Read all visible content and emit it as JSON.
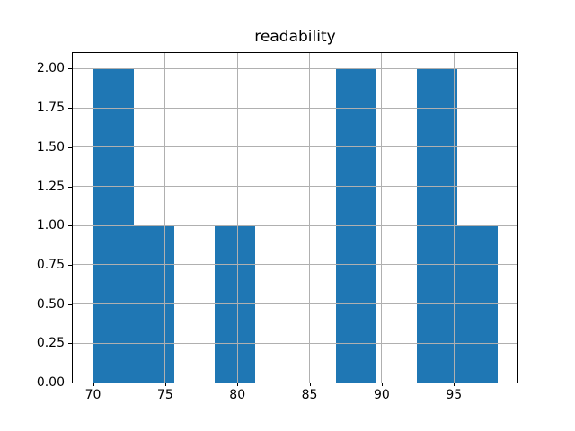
{
  "chart_data": {
    "type": "bar",
    "subtype": "histogram",
    "title": "readability",
    "bin_edges": [
      70.0,
      72.8,
      75.6,
      78.4,
      81.2,
      84.0,
      86.8,
      89.6,
      92.4,
      95.2,
      98.0
    ],
    "counts": [
      2,
      1,
      0,
      1,
      0,
      0,
      2,
      0,
      2,
      1
    ],
    "xlim": [
      68.6,
      99.4
    ],
    "ylim": [
      0,
      2.1
    ],
    "x_ticks": [
      70,
      75,
      80,
      85,
      90,
      95
    ],
    "x_tick_labels": [
      "70",
      "75",
      "80",
      "85",
      "90",
      "95"
    ],
    "y_ticks": [
      0.0,
      0.25,
      0.5,
      0.75,
      1.0,
      1.25,
      1.5,
      1.75,
      2.0
    ],
    "y_tick_labels": [
      "0.00",
      "0.25",
      "0.50",
      "0.75",
      "1.00",
      "1.25",
      "1.50",
      "1.75",
      "2.00"
    ],
    "xlabel": "",
    "ylabel": "",
    "grid": true,
    "grid_above_bars": true,
    "legend": false,
    "colors": {
      "bar": "#1f77b4",
      "grid": "#b0b0b0",
      "spine": "#000000",
      "background": "#ffffff"
    }
  }
}
